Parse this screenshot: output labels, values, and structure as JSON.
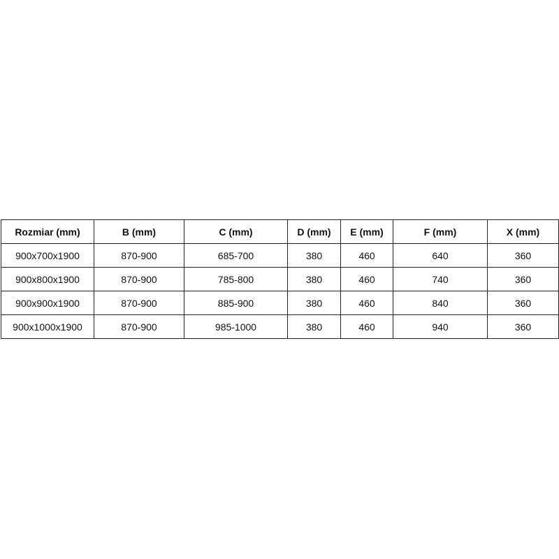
{
  "table": {
    "headers": [
      "Rozmiar (mm)",
      "B (mm)",
      "C (mm)",
      "D (mm)",
      "E (mm)",
      "F (mm)",
      "X (mm)"
    ],
    "rows": [
      [
        "900x700x1900",
        "870-900",
        "685-700",
        "380",
        "460",
        "640",
        "360"
      ],
      [
        "900x800x1900",
        "870-900",
        "785-800",
        "380",
        "460",
        "740",
        "360"
      ],
      [
        "900x900x1900",
        "870-900",
        "885-900",
        "380",
        "460",
        "840",
        "360"
      ],
      [
        "900x1000x1900",
        "870-900",
        "985-1000",
        "380",
        "460",
        "940",
        "360"
      ]
    ]
  }
}
